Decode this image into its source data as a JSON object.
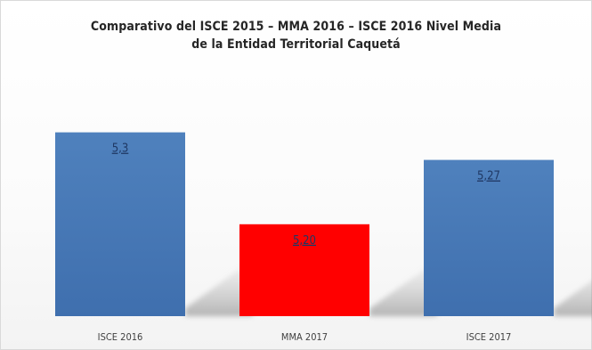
{
  "chart_data": {
    "type": "bar",
    "title_lines": [
      "Comparativo del ISCE 2015 – MMA 2016 – ISCE 2016 Nivel Media",
      "de la Entidad Territorial Caquetá"
    ],
    "categories": [
      "ISCE 2016",
      "MMA 2017",
      "ISCE 2017"
    ],
    "values": [
      5.3,
      5.2,
      5.27
    ],
    "value_labels": [
      "5,3",
      "5,20",
      "5,27"
    ],
    "colors": [
      "#4f81bd",
      "#ff0000",
      "#4f81bd"
    ],
    "ylim": [
      5.1,
      5.35
    ],
    "grid": false,
    "legend": "none"
  }
}
